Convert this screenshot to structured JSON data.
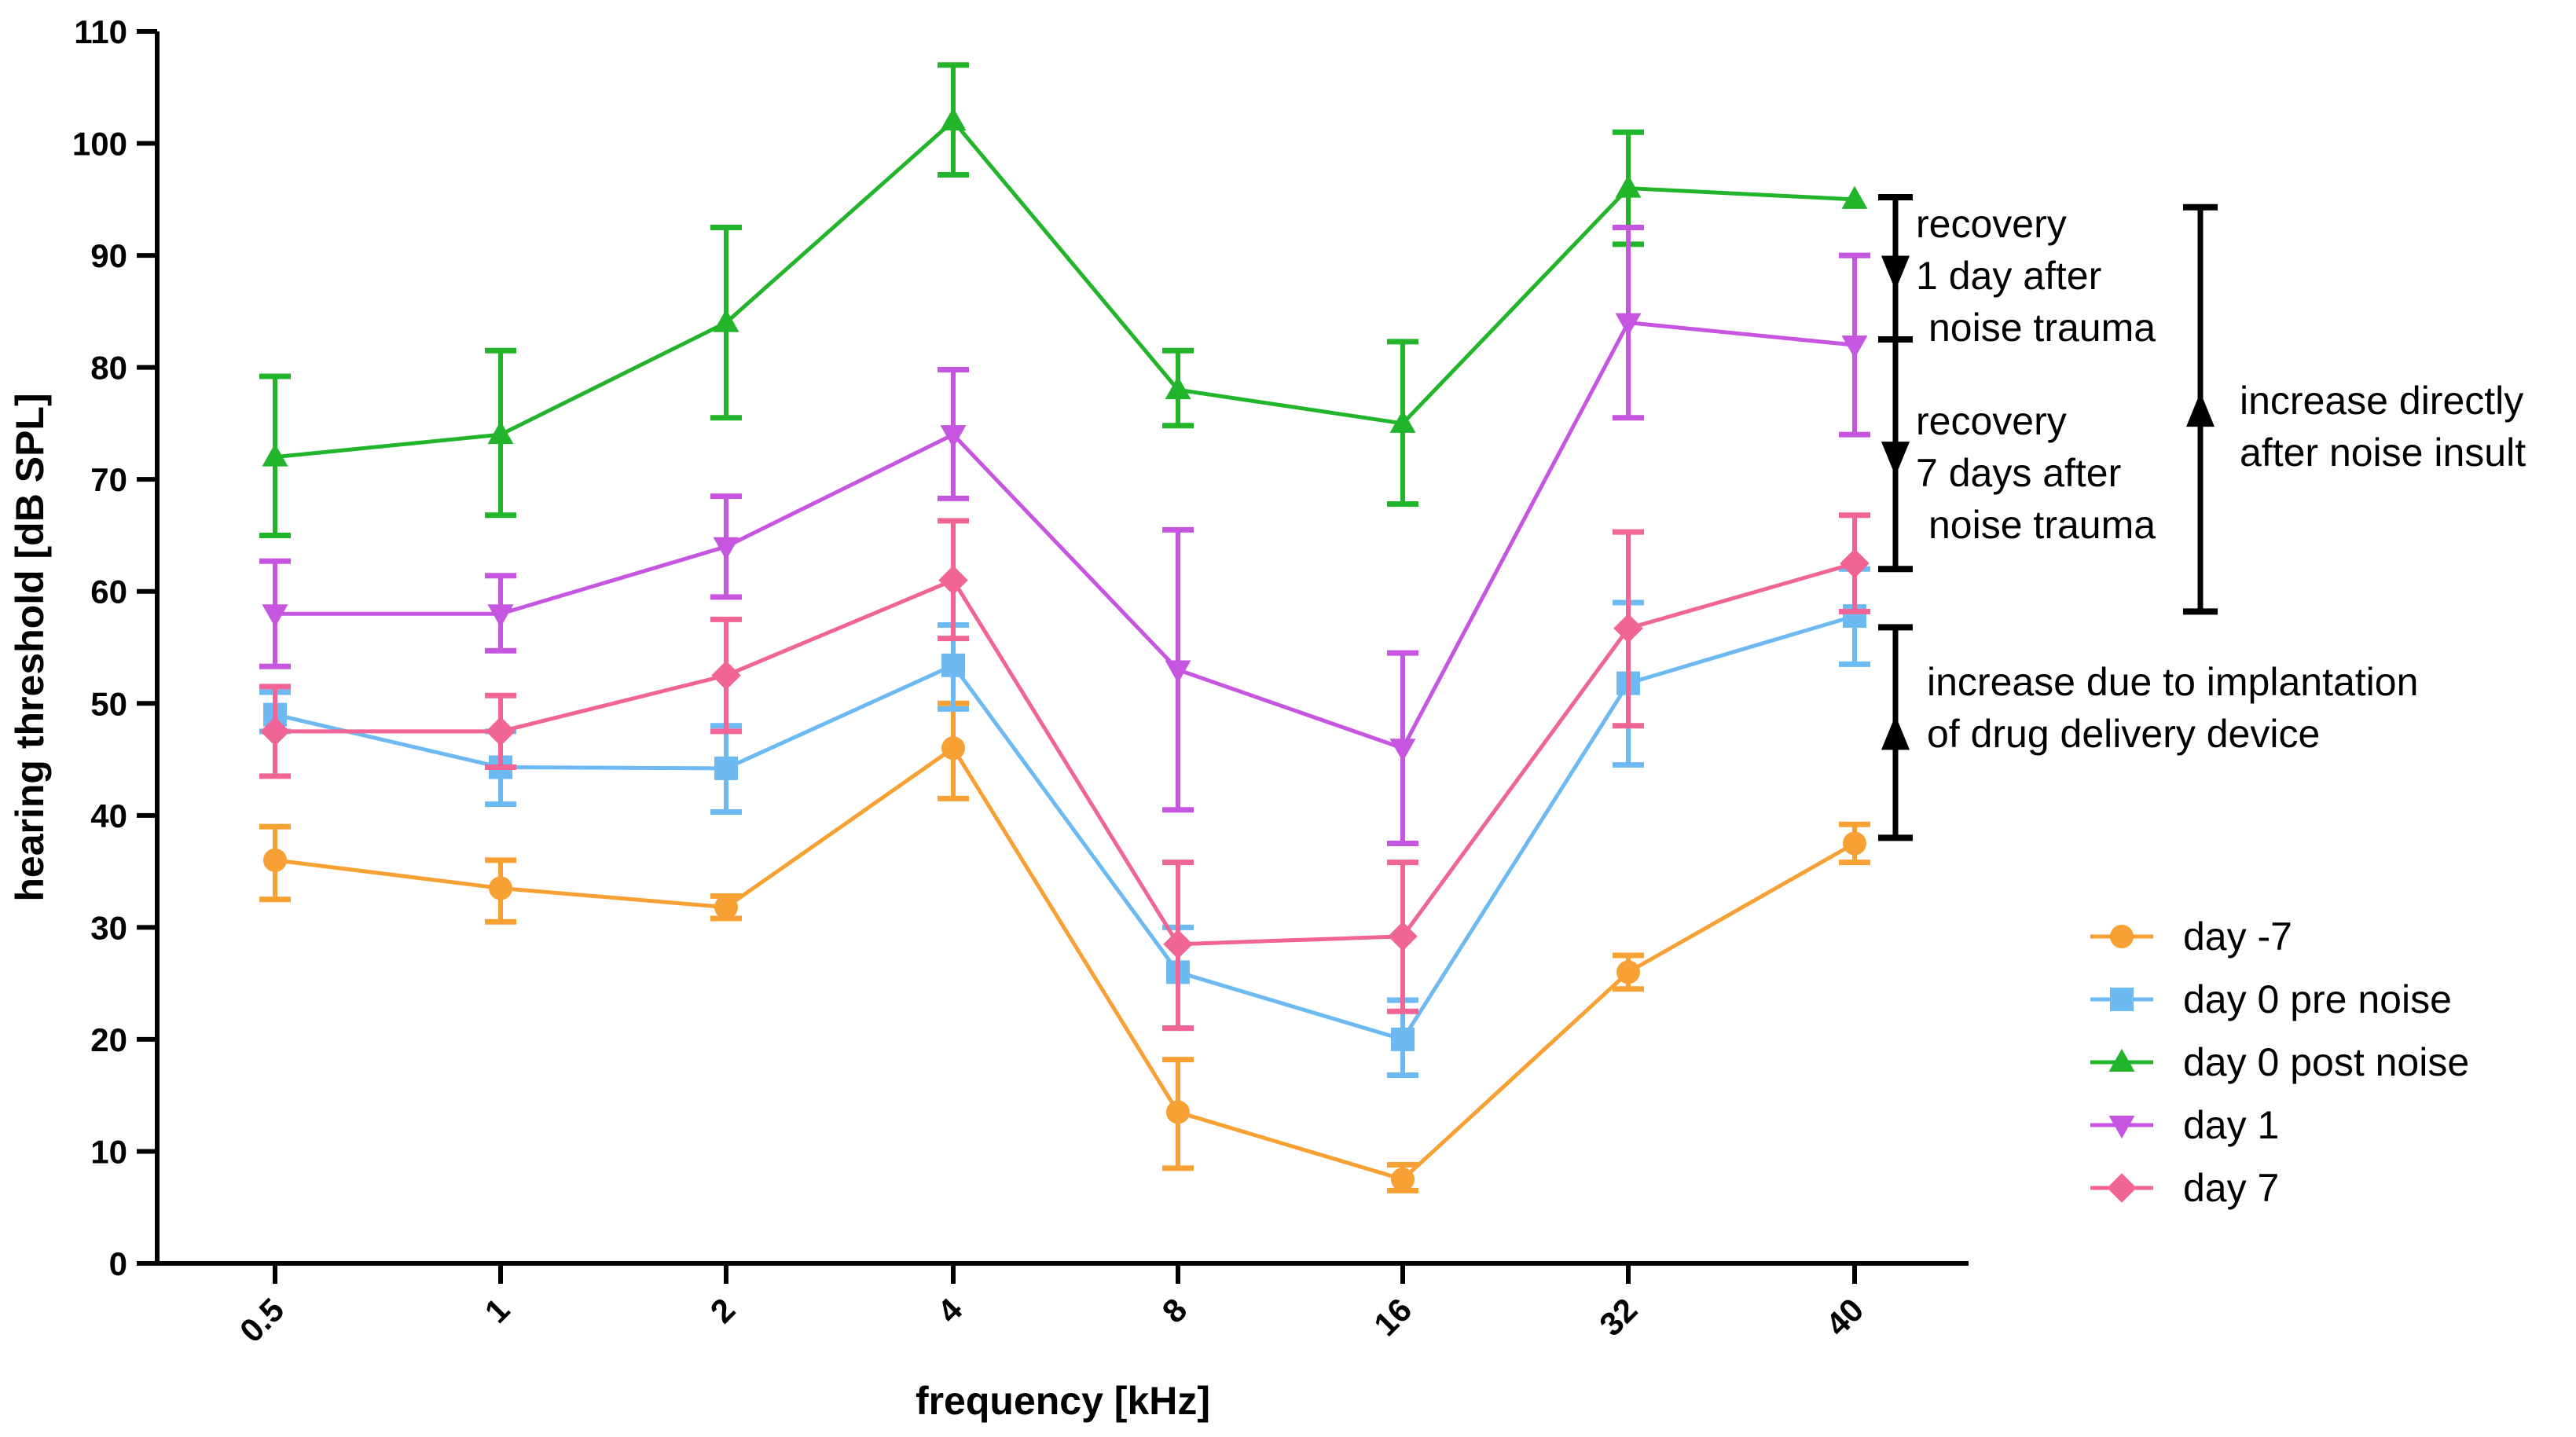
{
  "chart_data": {
    "type": "line",
    "title": "",
    "xlabel": "frequency [kHz]",
    "ylabel": "hearing threshold [dB SPL]",
    "categories": [
      "0.5",
      "1",
      "2",
      "4",
      "8",
      "16",
      "32",
      "40"
    ],
    "ylim": [
      0,
      110
    ],
    "yticks": [
      0,
      10,
      20,
      30,
      40,
      50,
      60,
      70,
      80,
      90,
      100,
      110
    ],
    "grid": false,
    "legend_position": "lower-right",
    "series": [
      {
        "name": "day -7",
        "color": "#F7A033",
        "marker": "circle",
        "values": [
          36,
          33.5,
          31.8,
          46,
          13.5,
          7.5,
          26,
          37.5
        ],
        "err_low": [
          32.5,
          30.5,
          30.8,
          41.5,
          8.5,
          6.5,
          24.5,
          35.8
        ],
        "err_high": [
          39,
          36,
          32.8,
          50,
          18.2,
          8.8,
          27.5,
          39.2
        ]
      },
      {
        "name": "day 0 pre noise",
        "color": "#6DB9F2",
        "marker": "square",
        "values": [
          49,
          44.3,
          44.2,
          53.4,
          26,
          20,
          51.8,
          57.8
        ],
        "err_low": [
          47.5,
          41,
          40.3,
          49.5,
          21,
          16.8,
          44.5,
          53.5
        ],
        "err_high": [
          51,
          47.5,
          48,
          57,
          30,
          23.5,
          59,
          62
        ]
      },
      {
        "name": "day 0 post noise",
        "color": "#22B52B",
        "marker": "triangle-up",
        "values": [
          72,
          74,
          84,
          102,
          78,
          75,
          96,
          95
        ],
        "err_low": [
          65,
          66.8,
          75.5,
          97.2,
          74.8,
          67.8,
          91,
          95
        ],
        "err_high": [
          79.2,
          81.5,
          92.5,
          107,
          81.5,
          82.3,
          101,
          95
        ]
      },
      {
        "name": "day 1",
        "color": "#C656E0",
        "marker": "triangle-down",
        "values": [
          58,
          58,
          64,
          74,
          53,
          46,
          84,
          82
        ],
        "err_low": [
          53.3,
          54.7,
          59.5,
          68.3,
          40.5,
          37.5,
          75.5,
          74
        ],
        "err_high": [
          62.7,
          61.4,
          68.5,
          79.8,
          65.5,
          54.5,
          92.5,
          90
        ]
      },
      {
        "name": "day 7",
        "color": "#F06496",
        "marker": "diamond",
        "values": [
          47.5,
          47.5,
          52.5,
          61,
          28.5,
          29.2,
          56.7,
          62.5
        ],
        "err_low": [
          43.5,
          44.3,
          47.5,
          55.8,
          21,
          22.5,
          48,
          58.2
        ],
        "err_high": [
          51.5,
          50.7,
          57.5,
          66.3,
          35.8,
          35.8,
          65.3,
          66.8
        ]
      }
    ],
    "annotations": [
      {
        "id": "recovery-1",
        "lines": [
          "recovery",
          "1 day after",
          "noise trauma"
        ],
        "range": [
          82.5,
          95.2
        ]
      },
      {
        "id": "recovery-7",
        "lines": [
          "recovery",
          "7 days after",
          "noise trauma"
        ],
        "range": [
          62,
          82.5
        ]
      },
      {
        "id": "increase-noise",
        "lines": [
          "increase directly",
          "after noise insult"
        ],
        "range": [
          58.2,
          94.3
        ]
      },
      {
        "id": "increase-implant",
        "lines": [
          "increase due to implantation",
          "of drug delivery device"
        ],
        "range": [
          38,
          56.8
        ]
      }
    ]
  }
}
